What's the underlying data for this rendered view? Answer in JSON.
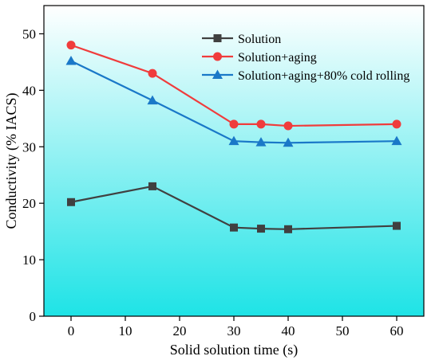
{
  "chart_data": {
    "type": "line",
    "title": "",
    "xlabel": "Solid solution time (s)",
    "ylabel": "Conductivity (% IACS)",
    "xlim": [
      -5,
      65
    ],
    "ylim": [
      0,
      55
    ],
    "xticks": [
      0,
      10,
      20,
      30,
      40,
      50,
      60
    ],
    "yticks": [
      0,
      10,
      20,
      30,
      40,
      50
    ],
    "x": [
      0,
      15,
      30,
      35,
      40,
      60
    ],
    "grid": false,
    "legend_position": "top-right",
    "background": {
      "gradient_top": "#ffffff",
      "gradient_bottom": "#1ee3e6"
    },
    "series": [
      {
        "name": "Solution",
        "color": "#404040",
        "marker": "square",
        "values": [
          20.2,
          23.0,
          15.7,
          15.5,
          15.4,
          16.0
        ]
      },
      {
        "name": "Solution+aging",
        "color": "#f03c3c",
        "marker": "circle",
        "values": [
          48.0,
          43.0,
          34.0,
          34.0,
          33.7,
          34.0
        ]
      },
      {
        "name": "Solution+aging+80% cold rolling",
        "color": "#1a78c8",
        "marker": "triangle",
        "values": [
          45.2,
          38.2,
          31.0,
          30.8,
          30.7,
          31.0
        ]
      }
    ]
  }
}
